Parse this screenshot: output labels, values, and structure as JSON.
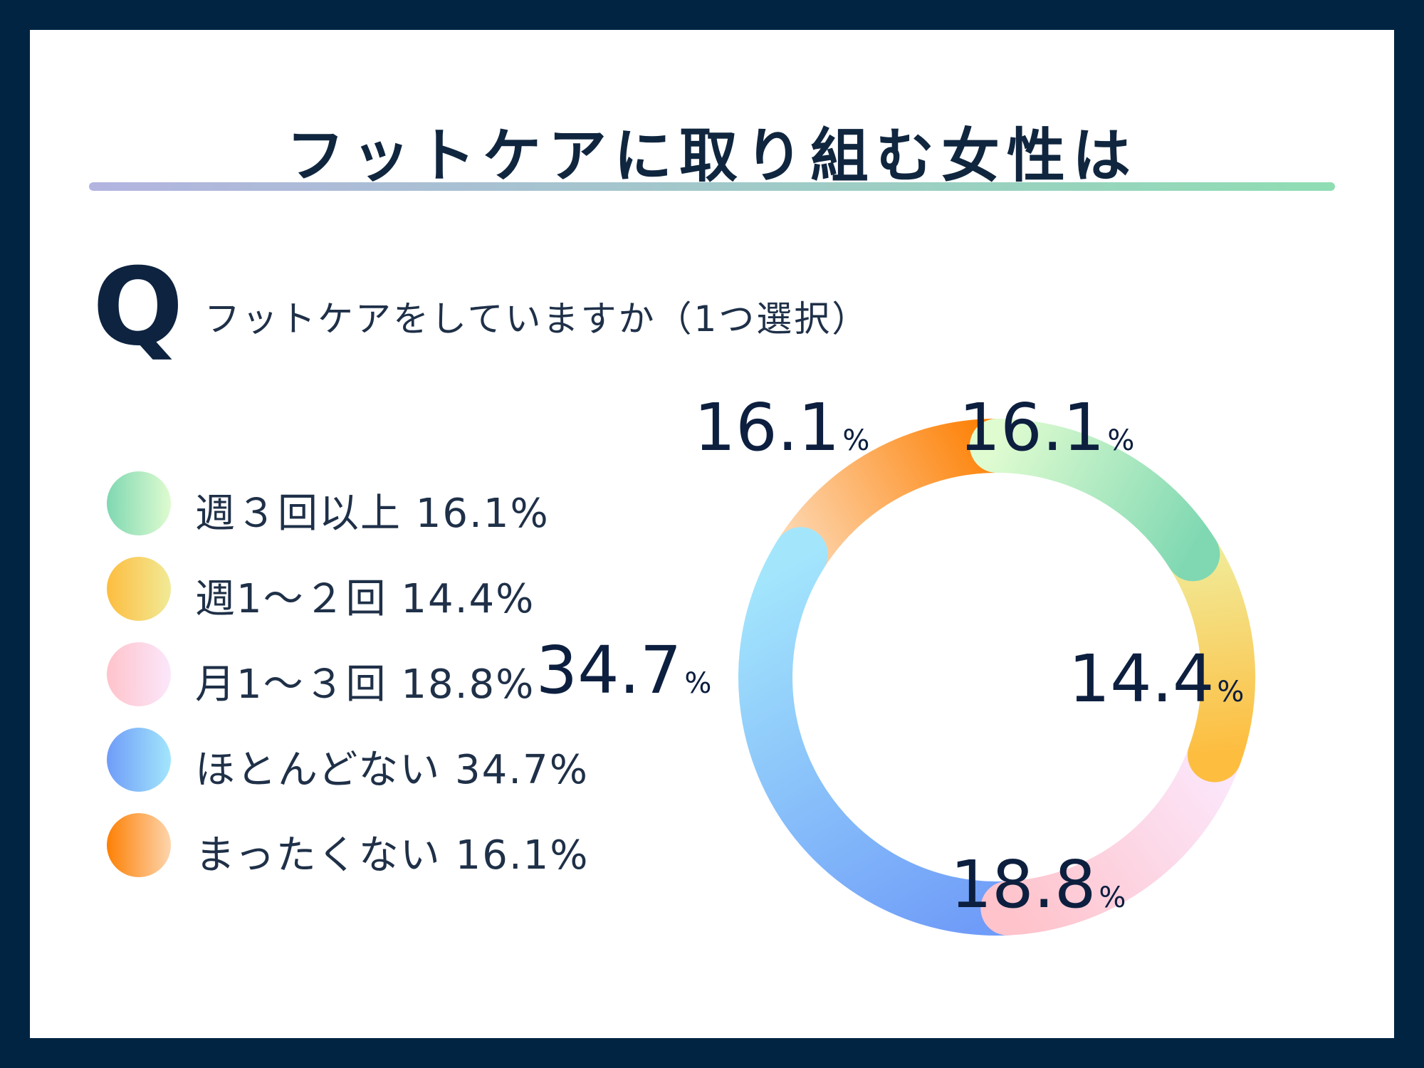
{
  "title": "フットケアに取り組む女性は",
  "question": {
    "mark": "Q",
    "text": "フットケアをしていますか（1つ選択）"
  },
  "legend": [
    {
      "label": "週３回以上 16.1%",
      "colors": [
        "#7fd8b2",
        "#dffbd0"
      ]
    },
    {
      "label": "週1～２回 14.4%",
      "colors": [
        "#fdbd3f",
        "#f1ea97"
      ]
    },
    {
      "label": "月1～３回 18.8%",
      "colors": [
        "#ffc3cb",
        "#fbe7fb"
      ]
    },
    {
      "label": "ほとんどない 34.7%",
      "colors": [
        "#6f9cf8",
        "#a3e6fc"
      ]
    },
    {
      "label": "まったくない 16.1%",
      "colors": [
        "#fd8004",
        "#fdd5ad"
      ]
    }
  ],
  "chart_data": {
    "type": "pie",
    "style": "donut",
    "categories": [
      "週３回以上",
      "週1～２回",
      "月1～３回",
      "ほとんどない",
      "まったくない"
    ],
    "values": [
      16.1,
      14.4,
      18.8,
      34.7,
      16.1
    ],
    "unit": "%",
    "direction": "clockwise from top",
    "labels": [
      {
        "num": "16.1",
        "sign": "%"
      },
      {
        "num": "14.4",
        "sign": "%"
      },
      {
        "num": "18.8",
        "sign": "%"
      },
      {
        "num": "34.7",
        "sign": "%"
      },
      {
        "num": "16.1",
        "sign": "%"
      }
    ],
    "colors": [
      [
        "#dffbd0",
        "#7fd8b2"
      ],
      [
        "#f1ea97",
        "#fdbd3f"
      ],
      [
        "#fbe7fb",
        "#ffc3cb"
      ],
      [
        "#6f9cf8",
        "#a3e6fc"
      ],
      [
        "#fdd5ad",
        "#fd8004"
      ]
    ]
  }
}
